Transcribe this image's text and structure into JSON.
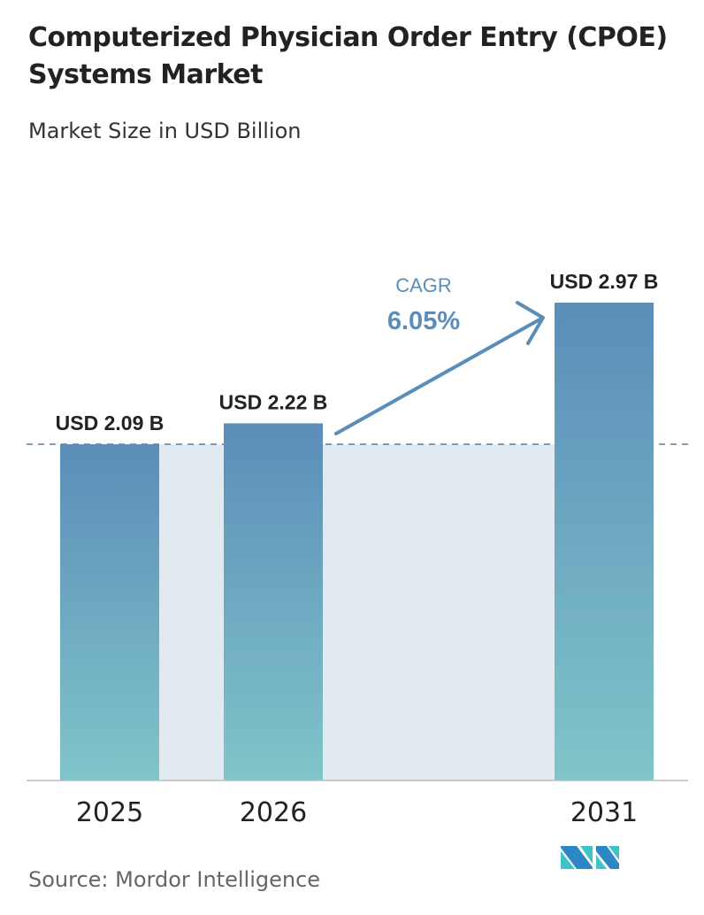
{
  "chart_data": {
    "type": "bar",
    "title": "Computerized Physician Order Entry (CPOE) Systems Market",
    "subtitle": "Market Size in USD Billion",
    "categories": [
      "2025",
      "2026",
      "2031"
    ],
    "values": [
      2.09,
      2.22,
      2.97
    ],
    "data_labels": [
      "USD 2.09 B",
      "USD 2.22 B",
      "USD 2.97 B"
    ],
    "unit": "USD Billion",
    "annotation": {
      "label": "CAGR",
      "value": "6.05%"
    },
    "reference_line": 2.09,
    "grid": false,
    "colors": {
      "bar_top": "#5b8db9",
      "bar_bottom": "#80c5c9",
      "shade": "#e1e9f1",
      "accent": "#5b8db9"
    }
  },
  "source": "Source:  Mordor Intelligence",
  "logo_text": "Mordor Intelligence"
}
